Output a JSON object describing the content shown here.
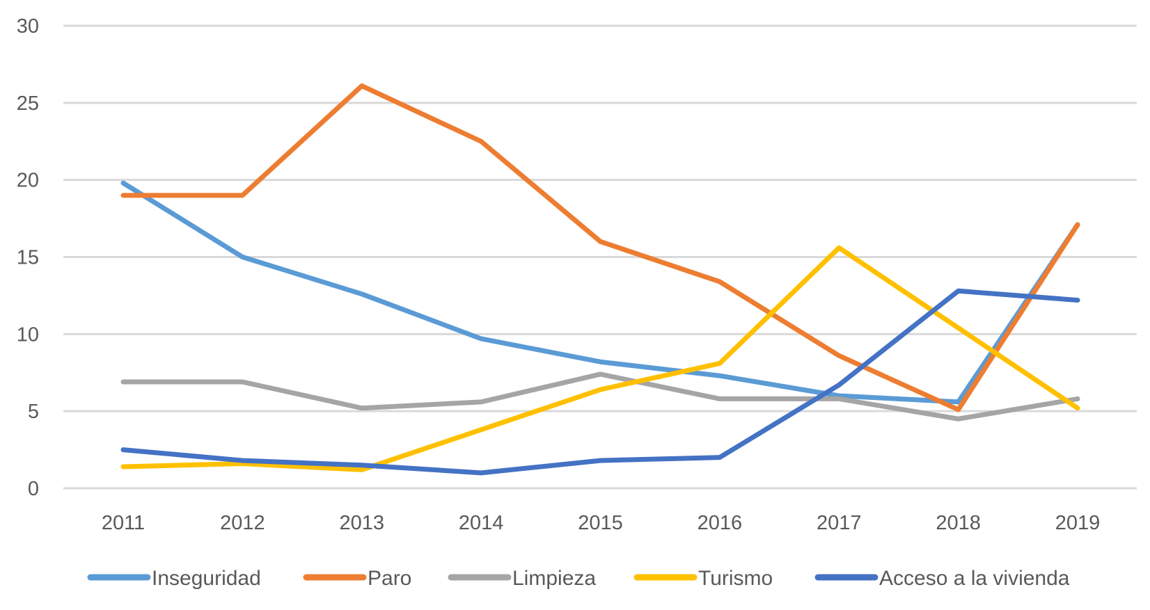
{
  "chart_data": {
    "type": "line",
    "title": "",
    "xlabel": "",
    "ylabel": "",
    "categories": [
      "2011",
      "2012",
      "2013",
      "2014",
      "2015",
      "2016",
      "2017",
      "2018",
      "2019"
    ],
    "ylim": [
      0,
      30
    ],
    "yticks": [
      0,
      5,
      10,
      15,
      20,
      25,
      30
    ],
    "grid": true,
    "legend_position": "bottom",
    "series": [
      {
        "name": "Inseguridad",
        "color": "#5B9BD5",
        "values": [
          19.8,
          15.0,
          12.6,
          9.7,
          8.2,
          7.3,
          6.0,
          5.6,
          17.1
        ]
      },
      {
        "name": "Paro",
        "color": "#ED7D31",
        "values": [
          19.0,
          19.0,
          26.1,
          22.5,
          16.0,
          13.4,
          8.6,
          5.1,
          17.1
        ]
      },
      {
        "name": "Limpieza",
        "color": "#A5A5A5",
        "values": [
          6.9,
          6.9,
          5.2,
          5.6,
          7.4,
          5.8,
          5.8,
          4.5,
          5.8
        ]
      },
      {
        "name": "Turismo",
        "color": "#FFC000",
        "values": [
          1.4,
          1.6,
          1.2,
          3.8,
          6.4,
          8.1,
          15.6,
          10.4,
          5.2
        ]
      },
      {
        "name": "Acceso a la vivienda",
        "color": "#4472C4",
        "values": [
          2.5,
          1.8,
          1.5,
          1.0,
          1.8,
          2.0,
          6.7,
          12.8,
          12.2
        ]
      }
    ]
  }
}
